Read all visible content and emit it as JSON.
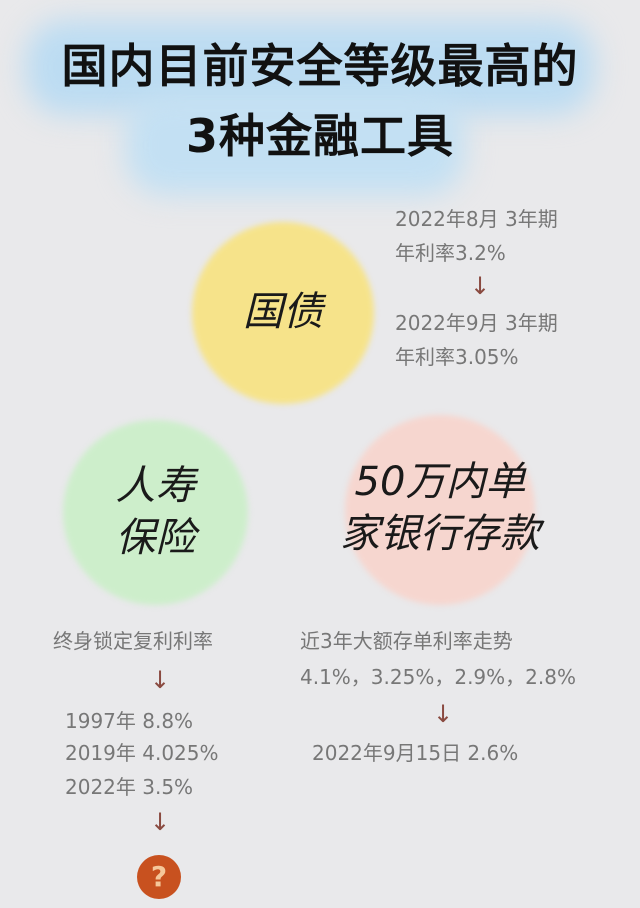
{
  "title": {
    "line1": "国内目前安全等级最高的",
    "line2": "3种金融工具"
  },
  "colors": {
    "title_highlight": "#b9dcf2",
    "bond_circle": "#f6e38a",
    "insurance_circle": "#cdeecb",
    "deposit_circle": "#f6d6cf",
    "question_badge": "#c8511f"
  },
  "bond": {
    "label": "国债",
    "lines": [
      "2022年8月  3年期",
      "年利率3.2%",
      "2022年9月  3年期",
      "年利率3.05%"
    ],
    "arrow": "↓"
  },
  "insurance": {
    "label_line1": "人寿",
    "label_line2": "保险",
    "heading": "终身锁定复利利率",
    "arrow": "↓",
    "rates": [
      "1997年 8.8%",
      "2019年 4.025%",
      "2022年 3.5%"
    ],
    "final": "?"
  },
  "deposit": {
    "label_line1": "50万内单",
    "label_line2": "家银行存款",
    "heading": "近3年大额存单利率走势",
    "rates": "4.1%，3.25%，2.9%，2.8%",
    "arrow": "↓",
    "latest": "2022年9月15日 2.6%"
  }
}
